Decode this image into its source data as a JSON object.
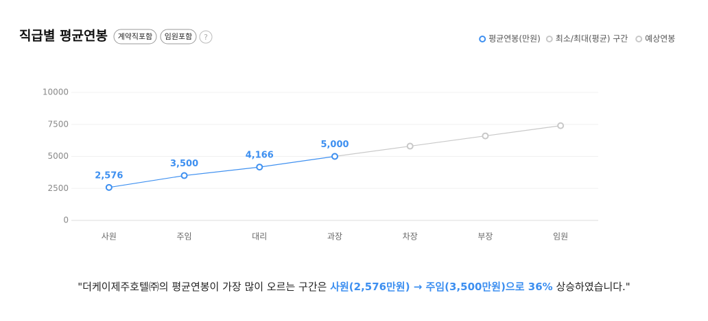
{
  "chart_data": {
    "type": "line",
    "title": "직급별 평균연봉",
    "badges": [
      "계약직포함",
      "임원포함"
    ],
    "help": "?",
    "categories": [
      "사원",
      "주임",
      "대리",
      "과장",
      "차장",
      "부장",
      "임원"
    ],
    "series": [
      {
        "name": "평균연봉(만원)",
        "color": "#3d8ff0",
        "values": [
          2576,
          3500,
          4166,
          5000,
          null,
          null,
          null
        ],
        "value_labels": [
          "2,576",
          "3,500",
          "4,166",
          "5,000",
          null,
          null,
          null
        ]
      },
      {
        "name": "최소/최대(평균) 구간",
        "color": "#c8c8c8",
        "values": [
          null,
          null,
          null,
          null,
          null,
          null,
          null
        ]
      },
      {
        "name": "예상연봉",
        "color": "#c8c8c8",
        "values": [
          null,
          null,
          null,
          5000,
          5800,
          6600,
          7400
        ]
      }
    ],
    "ylim": [
      0,
      10000
    ],
    "yticks": [
      0,
      2500,
      5000,
      7500,
      10000
    ],
    "grid": true,
    "legend": "top-right"
  },
  "summary": {
    "prefix": "\"더케이제주호텔㈜의 평균연봉이 가장 많이 오르는 구간은 ",
    "highlight": "사원(2,576만원) → 주임(3,500만원)으로 36%",
    "suffix": " 상승하였습니다.\""
  }
}
